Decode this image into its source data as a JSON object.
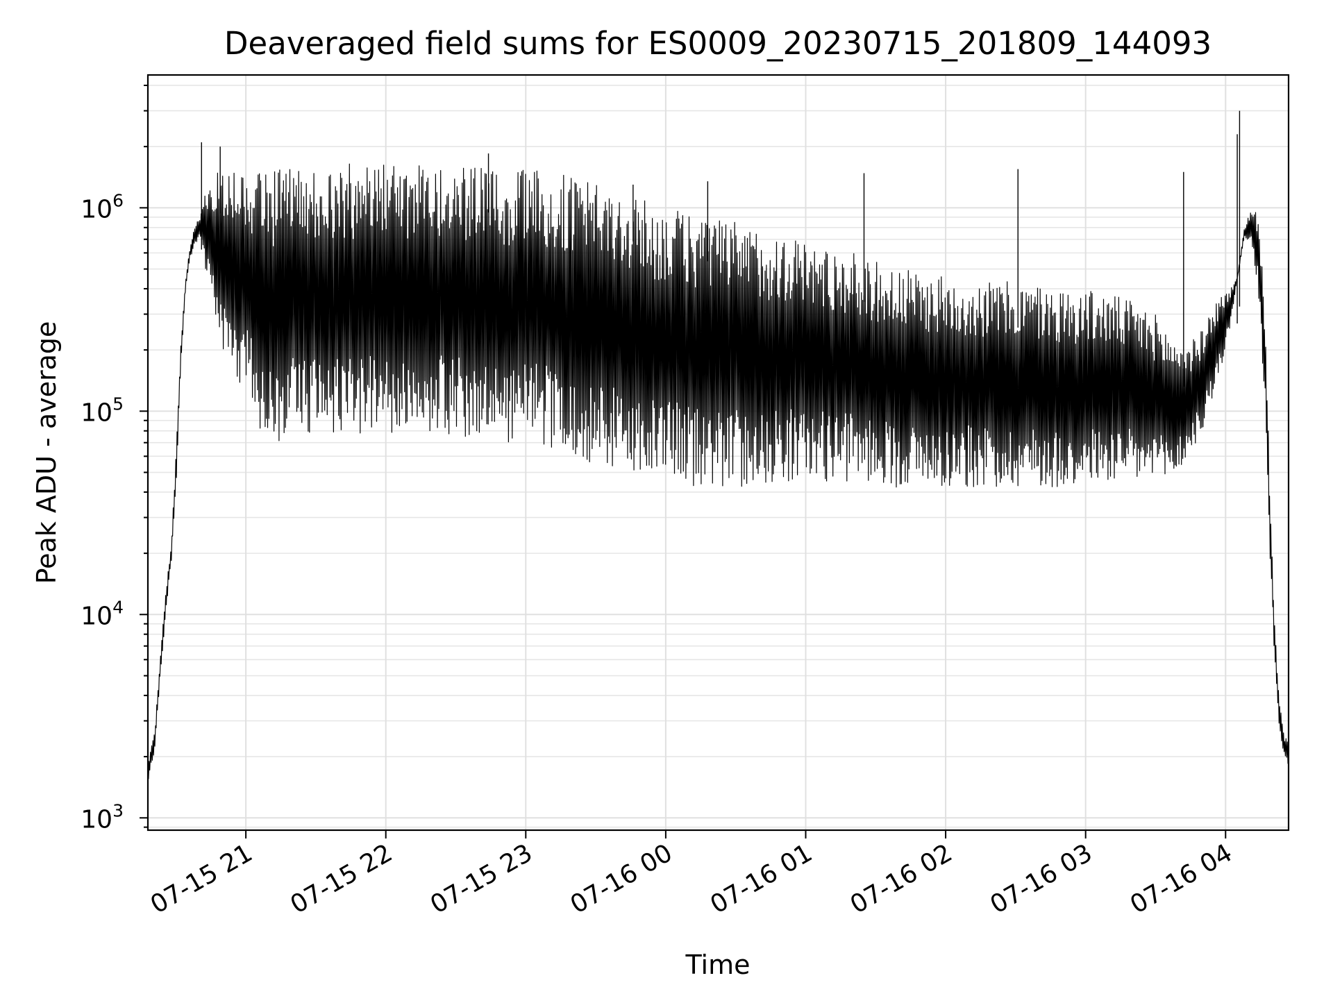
{
  "chart_data": {
    "type": "line",
    "title": "Deaveraged field sums for ES0009_20230715_201809_144093",
    "xlabel": "Time",
    "ylabel": "Peak ADU - average",
    "yscale": "log",
    "ylim": [
      870,
      4500000
    ],
    "xlim": [
      "2023-07-15 20:18",
      "2023-07-16 04:27"
    ],
    "grid": "major and minor",
    "x_tick_labels": [
      "07-15 21",
      "07-15 22",
      "07-15 23",
      "07-16 00",
      "07-16 01",
      "07-16 02",
      "07-16 03",
      "07-16 04"
    ],
    "x_ticks": [
      "2023-07-15 21:00",
      "2023-07-15 22:00",
      "2023-07-15 23:00",
      "2023-07-16 00:00",
      "2023-07-16 01:00",
      "2023-07-16 02:00",
      "2023-07-16 03:00",
      "2023-07-16 04:00"
    ],
    "y_ticks": [
      {
        "value": 1000,
        "base": "10",
        "exp": "3"
      },
      {
        "value": 10000,
        "base": "10",
        "exp": "4"
      },
      {
        "value": 100000,
        "base": "10",
        "exp": "5"
      },
      {
        "value": 1000000,
        "base": "10",
        "exp": "6"
      }
    ],
    "line_color": "#000000",
    "series": [
      {
        "x": [
          "2023-07-15 20:18",
          "2023-07-15 20:19",
          "2023-07-15 20:21",
          "2023-07-15 20:22",
          "2023-07-15 20:24",
          "2023-07-15 20:26",
          "2023-07-15 20:28",
          "2023-07-15 20:30",
          "2023-07-15 20:32",
          "2023-07-15 20:34",
          "2023-07-15 20:36",
          "2023-07-15 20:38",
          "2023-07-15 20:40",
          "2023-07-15 20:42",
          "2023-07-15 20:44",
          "2023-07-15 20:46",
          "2023-07-15 20:48",
          "2023-07-15 20:50",
          "2023-07-15 20:52",
          "2023-07-15 20:54",
          "2023-07-15 20:56",
          "2023-07-15 20:58",
          "2023-07-15 21:00",
          "2023-07-15 21:03",
          "2023-07-15 21:06",
          "2023-07-15 21:09",
          "2023-07-15 21:12",
          "2023-07-15 21:15",
          "2023-07-15 21:18",
          "2023-07-15 21:21",
          "2023-07-15 21:24",
          "2023-07-15 21:27",
          "2023-07-15 21:30",
          "2023-07-15 21:35",
          "2023-07-15 21:40",
          "2023-07-15 21:45",
          "2023-07-15 21:50",
          "2023-07-15 22:00",
          "2023-07-15 22:10",
          "2023-07-15 22:20",
          "2023-07-15 22:30",
          "2023-07-15 22:40",
          "2023-07-15 22:50",
          "2023-07-15 23:00",
          "2023-07-15 23:10",
          "2023-07-15 23:20",
          "2023-07-15 23:30",
          "2023-07-15 23:40",
          "2023-07-15 23:50",
          "2023-07-16 00:00",
          "2023-07-16 00:10",
          "2023-07-16 00:20",
          "2023-07-16 00:30",
          "2023-07-16 00:40",
          "2023-07-16 00:50",
          "2023-07-16 01:00",
          "2023-07-16 01:10",
          "2023-07-16 01:20",
          "2023-07-16 01:30",
          "2023-07-16 01:40",
          "2023-07-16 01:50",
          "2023-07-16 02:00",
          "2023-07-16 02:10",
          "2023-07-16 02:20",
          "2023-07-16 02:30",
          "2023-07-16 02:40",
          "2023-07-16 02:50",
          "2023-07-16 03:00",
          "2023-07-16 03:10",
          "2023-07-16 03:20",
          "2023-07-16 03:30",
          "2023-07-16 03:35",
          "2023-07-16 03:40",
          "2023-07-16 03:45",
          "2023-07-16 03:50",
          "2023-07-16 03:53",
          "2023-07-16 03:56",
          "2023-07-16 03:59",
          "2023-07-16 04:02",
          "2023-07-16 04:05",
          "2023-07-16 04:08",
          "2023-07-16 04:11",
          "2023-07-16 04:14",
          "2023-07-16 04:17",
          "2023-07-16 04:19",
          "2023-07-16 04:21",
          "2023-07-16 04:23",
          "2023-07-16 04:25",
          "2023-07-16 04:27"
        ],
        "low": [
          1400,
          1700,
          2100,
          3200,
          6000,
          11000,
          18000,
          40000,
          150000,
          380000,
          560000,
          650000,
          700000,
          560000,
          400000,
          300000,
          240000,
          200000,
          170000,
          150000,
          140000,
          130000,
          120000,
          100000,
          80000,
          70000,
          65000,
          65000,
          70000,
          75000,
          75000,
          75000,
          75000,
          75000,
          75000,
          75000,
          75000,
          75000,
          75000,
          75000,
          75000,
          75000,
          70000,
          70000,
          65000,
          60000,
          55000,
          50000,
          47000,
          45000,
          43000,
          42000,
          42000,
          43000,
          45000,
          45000,
          45000,
          45000,
          44000,
          42000,
          42000,
          42000,
          42000,
          42000,
          42000,
          42000,
          42000,
          43000,
          44000,
          44000,
          44000,
          45000,
          50000,
          60000,
          80000,
          100000,
          130000,
          180000,
          260000,
          450000,
          700000,
          650000,
          380000,
          100000,
          20000,
          6000,
          2800,
          2000,
          1800
        ],
        "high": [
          1900,
          2100,
          2700,
          4000,
          8000,
          14000,
          22000,
          60000,
          200000,
          420000,
          640000,
          800000,
          900000,
          1200000,
          1400000,
          1500000,
          1550000,
          1580000,
          1600000,
          1600000,
          1600000,
          1600000,
          1600000,
          1600000,
          1500000,
          1500000,
          1500000,
          1600000,
          1650000,
          1650000,
          1650000,
          1650000,
          1650000,
          1650000,
          1650000,
          1650000,
          1650000,
          1650000,
          1650000,
          1650000,
          1650000,
          1600000,
          1550000,
          1550000,
          1500000,
          1450000,
          1300000,
          1200000,
          1100000,
          1000000,
          950000,
          900000,
          850000,
          800000,
          750000,
          700000,
          650000,
          600000,
          550000,
          500000,
          480000,
          460000,
          450000,
          440000,
          430000,
          420000,
          400000,
          400000,
          380000,
          350000,
          300000,
          250000,
          220000,
          220000,
          250000,
          300000,
          350000,
          380000,
          400000,
          450000,
          800000,
          1000000,
          950000,
          300000,
          40000,
          9000,
          3800,
          2600,
          2300
        ],
        "spikes": [
          {
            "x": "2023-07-15 20:41",
            "y": 2100000
          },
          {
            "x": "2023-07-15 20:49",
            "y": 2000000
          },
          {
            "x": "2023-07-15 22:44",
            "y": 1850000
          },
          {
            "x": "2023-07-15 23:46",
            "y": 1300000
          },
          {
            "x": "2023-07-16 00:18",
            "y": 1350000
          },
          {
            "x": "2023-07-16 01:25",
            "y": 1480000
          },
          {
            "x": "2023-07-16 02:31",
            "y": 1550000
          },
          {
            "x": "2023-07-16 03:42",
            "y": 1500000
          },
          {
            "x": "2023-07-16 04:06",
            "y": 3000000
          },
          {
            "x": "2023-07-16 04:05",
            "y": 2300000
          }
        ]
      }
    ]
  }
}
